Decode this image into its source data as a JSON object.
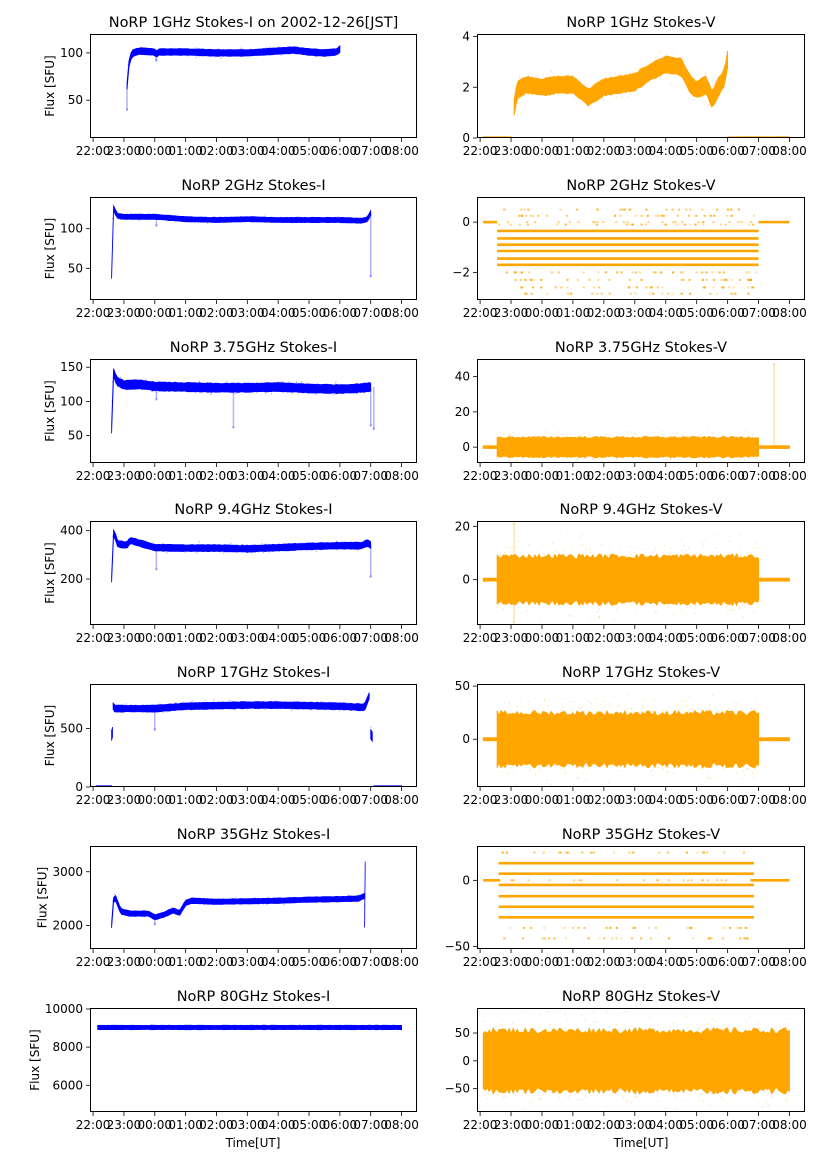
{
  "figure": {
    "xlabel": "Time[UT]",
    "time_ticks": [
      "22:00",
      "23:00",
      "00:00",
      "01:00",
      "02:00",
      "03:00",
      "04:00",
      "05:00",
      "06:00",
      "07:00",
      "08:00"
    ],
    "colors": {
      "stokes_i": "#0000ff",
      "stokes_v": "#ffa500",
      "axes": "#000000"
    }
  },
  "chart_data": [
    {
      "type": "scatter",
      "title": "NoRP 1GHz Stokes-I on 2002-12-26[JST]",
      "ylabel": "Flux [SFU]",
      "xlabel": "",
      "x_unit": "hours since 22:00 UT",
      "xlim": [
        -0.1,
        10.5
      ],
      "ylim": [
        10,
        120
      ],
      "yticks": [
        50,
        100
      ],
      "color": "#0000ff",
      "segments": [
        {
          "x": [
            1.1,
            1.12,
            1.2,
            1.3,
            1.5,
            2.0,
            2.05,
            2.1,
            3.0,
            4.0,
            5.0,
            6.0,
            6.5,
            7.0,
            7.5,
            7.9,
            8.0
          ],
          "y": [
            65,
            80,
            95,
            100,
            102,
            101,
            97,
            101,
            101,
            100,
            100,
            102,
            103,
            101,
            100,
            101,
            104
          ],
          "spread": 3
        }
      ],
      "outliers": [
        {
          "x": 1.1,
          "y": 40
        },
        {
          "x": 2.05,
          "y": 92
        }
      ]
    },
    {
      "type": "scatter",
      "title": "NoRP 1GHz Stokes-V",
      "ylabel": "",
      "xlabel": "",
      "x_unit": "hours since 22:00 UT",
      "xlim": [
        -0.1,
        10.5
      ],
      "ylim": [
        0,
        4.1
      ],
      "yticks": [
        0,
        2,
        4
      ],
      "color": "#ffa500",
      "segments": [
        {
          "x": [
            1.1,
            1.2,
            1.5,
            2.0,
            2.5,
            3.0,
            3.5,
            4.0,
            4.5,
            5.0,
            5.5,
            6.0,
            6.5,
            6.8,
            7.0,
            7.3,
            7.5,
            7.7,
            7.9,
            8.0
          ],
          "y": [
            1.2,
            1.9,
            2.1,
            2.0,
            2.1,
            2.1,
            1.6,
            2.0,
            2.1,
            2.2,
            2.6,
            2.9,
            2.8,
            2.1,
            1.9,
            2.1,
            1.5,
            2.0,
            2.4,
            3.1
          ],
          "spread": 0.35
        },
        {
          "x": [
            0.1,
            1.0
          ],
          "y": [
            0,
            0
          ],
          "spread": 0.02
        },
        {
          "x": [
            8.0,
            10.0
          ],
          "y": [
            0,
            0
          ],
          "spread": 0.02
        }
      ],
      "outliers": []
    },
    {
      "type": "scatter",
      "title": "NoRP 2GHz Stokes-I",
      "ylabel": "Flux [SFU]",
      "xlabel": "",
      "x_unit": "hours since 22:00 UT",
      "xlim": [
        -0.1,
        10.5
      ],
      "ylim": [
        10,
        140
      ],
      "yticks": [
        50,
        100
      ],
      "color": "#0000ff",
      "segments": [
        {
          "x": [
            0.6,
            0.62,
            0.65,
            0.7,
            0.8,
            1.0,
            2.0,
            3.0,
            4.0,
            5.0,
            6.0,
            7.0,
            8.0,
            8.7,
            8.9,
            9.0
          ],
          "y": [
            40,
            100,
            128,
            122,
            116,
            115,
            115,
            112,
            111,
            112,
            111,
            111,
            111,
            110,
            112,
            120
          ],
          "spread": 2.5
        }
      ],
      "outliers": [
        {
          "x": 9.0,
          "y": 40
        },
        {
          "x": 2.05,
          "y": 104
        }
      ]
    },
    {
      "type": "banded",
      "title": "NoRP 2GHz Stokes-V",
      "ylabel": "",
      "xlabel": "",
      "x_unit": "hours since 22:00 UT",
      "xlim": [
        -0.1,
        10.5
      ],
      "ylim": [
        -3.1,
        1.0
      ],
      "yticks": [
        -2,
        0
      ],
      "color": "#ffa500",
      "band_range": [
        0.55,
        9.0
      ],
      "levels_solid": [
        -0.35,
        -0.65,
        -0.9,
        -1.15,
        -1.45,
        -1.7
      ],
      "levels_sparse": [
        0.5,
        0.25,
        -0.1,
        -2.0,
        -2.3,
        -2.6,
        -2.85
      ],
      "flat_segments": [
        {
          "x": [
            0.1,
            0.55
          ],
          "y": 0
        },
        {
          "x": [
            9.0,
            10.0
          ],
          "y": 0
        }
      ]
    },
    {
      "type": "scatter",
      "title": "NoRP 3.75GHz Stokes-I",
      "ylabel": "Flux [SFU]",
      "xlabel": "",
      "x_unit": "hours since 22:00 UT",
      "xlim": [
        -0.1,
        10.5
      ],
      "ylim": [
        10,
        162
      ],
      "yticks": [
        50,
        100,
        150
      ],
      "color": "#0000ff",
      "segments": [
        {
          "x": [
            0.6,
            0.62,
            0.67,
            0.75,
            1.0,
            1.5,
            2.0,
            3.0,
            4.0,
            5.0,
            6.0,
            7.0,
            8.0,
            8.5,
            9.0
          ],
          "y": [
            60,
            120,
            145,
            130,
            124,
            125,
            122,
            121,
            120,
            120,
            121,
            119,
            118,
            119,
            121
          ],
          "spread": 6
        }
      ],
      "outliers": [
        {
          "x": 4.55,
          "y": 62
        },
        {
          "x": 9.0,
          "y": 65
        },
        {
          "x": 9.1,
          "y": 60
        },
        {
          "x": 2.05,
          "y": 103
        }
      ]
    },
    {
      "type": "scatter",
      "title": "NoRP 3.75GHz Stokes-V",
      "ylabel": "",
      "xlabel": "",
      "x_unit": "hours since 22:00 UT",
      "xlim": [
        -0.1,
        10.5
      ],
      "ylim": [
        -9,
        50
      ],
      "yticks": [
        0,
        20,
        40
      ],
      "color": "#ffa500",
      "segments": [
        {
          "x": [
            0.55,
            9.0
          ],
          "y": [
            0,
            0
          ],
          "spread": 6
        },
        {
          "x": [
            0.1,
            0.55
          ],
          "y": [
            0,
            0
          ],
          "spread": 0.4
        },
        {
          "x": [
            9.0,
            10.0
          ],
          "y": [
            0,
            0
          ],
          "spread": 0.4
        }
      ],
      "outliers": [
        {
          "x": 9.5,
          "y": 47
        }
      ]
    },
    {
      "type": "scatter",
      "title": "NoRP 9.4GHz Stokes-I",
      "ylabel": "Flux [SFU]",
      "xlabel": "",
      "x_unit": "hours since 22:00 UT",
      "xlim": [
        -0.1,
        10.5
      ],
      "ylim": [
        10,
        440
      ],
      "yticks": [
        200,
        400
      ],
      "color": "#0000ff",
      "segments": [
        {
          "x": [
            0.6,
            0.62,
            0.67,
            0.8,
            1.1,
            1.2,
            2.0,
            3.0,
            4.0,
            5.0,
            6.0,
            7.0,
            8.0,
            8.7,
            8.9,
            9.0
          ],
          "y": [
            200,
            350,
            395,
            345,
            340,
            360,
            330,
            328,
            328,
            325,
            330,
            335,
            338,
            338,
            350,
            340
          ],
          "spread": 12
        }
      ],
      "outliers": [
        {
          "x": 2.05,
          "y": 240
        },
        {
          "x": 9.0,
          "y": 210
        }
      ]
    },
    {
      "type": "scatter",
      "title": "NoRP 9.4GHz Stokes-V",
      "ylabel": "",
      "xlabel": "",
      "x_unit": "hours since 22:00 UT",
      "xlim": [
        -0.1,
        10.5
      ],
      "ylim": [
        -17,
        22
      ],
      "yticks": [
        0,
        20
      ],
      "color": "#ffa500",
      "segments": [
        {
          "x": [
            0.55,
            9.0
          ],
          "y": [
            0,
            0
          ],
          "spread": 10
        },
        {
          "x": [
            0.1,
            0.55
          ],
          "y": [
            0,
            0
          ],
          "spread": 0.3
        },
        {
          "x": [
            9.0,
            10.0
          ],
          "y": [
            0,
            0
          ],
          "spread": 0.3
        }
      ],
      "outliers": [
        {
          "x": 1.1,
          "y": 21
        },
        {
          "x": 1.1,
          "y": -16
        }
      ]
    },
    {
      "type": "scatter",
      "title": "NoRP 17GHz Stokes-I",
      "ylabel": "Flux [SFU]",
      "xlabel": "",
      "x_unit": "hours since 22:00 UT",
      "xlim": [
        -0.1,
        10.5
      ],
      "ylim": [
        0,
        880
      ],
      "yticks": [
        0,
        500
      ],
      "color": "#0000ff",
      "segments": [
        {
          "x": [
            0.6,
            0.63
          ],
          "y": [
            440,
            470
          ],
          "spread": 40
        },
        {
          "x": [
            0.65,
            0.7,
            1.0,
            2.0,
            3.0,
            4.0,
            5.0,
            6.0,
            7.0,
            8.0,
            8.8,
            8.95
          ],
          "y": [
            690,
            670,
            670,
            670,
            690,
            695,
            700,
            700,
            695,
            690,
            680,
            780
          ],
          "spread": 25
        },
        {
          "x": [
            9.0,
            9.05
          ],
          "y": [
            450,
            430
          ],
          "spread": 40
        },
        {
          "x": [
            0.1,
            0.6
          ],
          "y": [
            0,
            0
          ],
          "spread": 4
        },
        {
          "x": [
            9.1,
            10.0
          ],
          "y": [
            0,
            0
          ],
          "spread": 4
        }
      ],
      "outliers": [
        {
          "x": 2.0,
          "y": 490
        }
      ]
    },
    {
      "type": "scatter",
      "title": "NoRP 17GHz Stokes-V",
      "ylabel": "",
      "xlabel": "",
      "x_unit": "hours since 22:00 UT",
      "xlim": [
        -0.1,
        10.5
      ],
      "ylim": [
        -45,
        52
      ],
      "yticks": [
        0,
        50
      ],
      "color": "#ffa500",
      "segments": [
        {
          "x": [
            0.55,
            9.0
          ],
          "y": [
            0,
            0
          ],
          "spread": 28
        },
        {
          "x": [
            0.1,
            0.55
          ],
          "y": [
            0,
            0
          ],
          "spread": 0.8
        },
        {
          "x": [
            9.0,
            10.0
          ],
          "y": [
            0,
            0
          ],
          "spread": 0.8
        }
      ],
      "outliers": []
    },
    {
      "type": "scatter",
      "title": "NoRP 35GHz Stokes-I",
      "ylabel": "Flux [SFU]",
      "xlabel": "",
      "x_unit": "hours since 22:00 UT",
      "xlim": [
        -0.1,
        10.5
      ],
      "ylim": [
        1560,
        3480
      ],
      "yticks": [
        2000,
        3000
      ],
      "color": "#0000ff",
      "segments": [
        {
          "x": [
            0.6,
            0.63,
            0.7,
            0.9,
            1.2,
            1.8,
            2.0,
            2.3,
            2.6,
            2.8,
            3.0,
            3.2,
            4.0,
            5.0,
            6.0,
            7.0,
            8.0,
            8.6,
            8.8
          ],
          "y": [
            2000,
            2400,
            2550,
            2260,
            2220,
            2220,
            2150,
            2200,
            2280,
            2230,
            2420,
            2460,
            2440,
            2450,
            2460,
            2480,
            2490,
            2500,
            2550
          ],
          "spread": 40
        },
        {
          "x": [
            8.8,
            8.82
          ],
          "y": [
            2000,
            3150
          ],
          "spread": 30
        }
      ],
      "outliers": [
        {
          "x": 2.0,
          "y": 2020
        }
      ]
    },
    {
      "type": "banded",
      "title": "NoRP 35GHz Stokes-V",
      "ylabel": "",
      "xlabel": "",
      "x_unit": "hours since 22:00 UT",
      "xlim": [
        -0.1,
        10.5
      ],
      "ylim": [
        -52,
        26
      ],
      "yticks": [
        -50,
        0
      ],
      "color": "#ffa500",
      "band_range": [
        0.6,
        8.85
      ],
      "levels_solid": [
        13,
        5,
        -3.5,
        -12,
        -20,
        -28
      ],
      "levels_sparse": [
        21,
        -36,
        -44
      ],
      "flat_segments": [
        {
          "x": [
            0.1,
            0.65
          ],
          "y": 0
        },
        {
          "x": [
            8.75,
            10.0
          ],
          "y": 0
        }
      ]
    },
    {
      "type": "scatter",
      "title": "NoRP 80GHz Stokes-I",
      "ylabel": "Flux [SFU]",
      "xlabel": "Time[UT]",
      "x_unit": "hours since 22:00 UT",
      "xlim": [
        -0.1,
        10.5
      ],
      "ylim": [
        4600,
        10050
      ],
      "yticks": [
        6000,
        8000,
        10000
      ],
      "color": "#0000ff",
      "segments": [
        {
          "x": [
            0.15,
            10.0
          ],
          "y": [
            9030,
            9030
          ],
          "spread": 80
        }
      ],
      "outliers": []
    },
    {
      "type": "scatter",
      "title": "NoRP 80GHz Stokes-V",
      "ylabel": "",
      "xlabel": "Time[UT]",
      "x_unit": "hours since 22:00 UT",
      "xlim": [
        -0.1,
        10.5
      ],
      "ylim": [
        -92,
        95
      ],
      "yticks": [
        -50,
        0,
        50
      ],
      "color": "#ffa500",
      "segments": [
        {
          "x": [
            0.1,
            10.0
          ],
          "y": [
            0,
            0
          ],
          "spread": 62
        }
      ],
      "outliers": []
    }
  ]
}
